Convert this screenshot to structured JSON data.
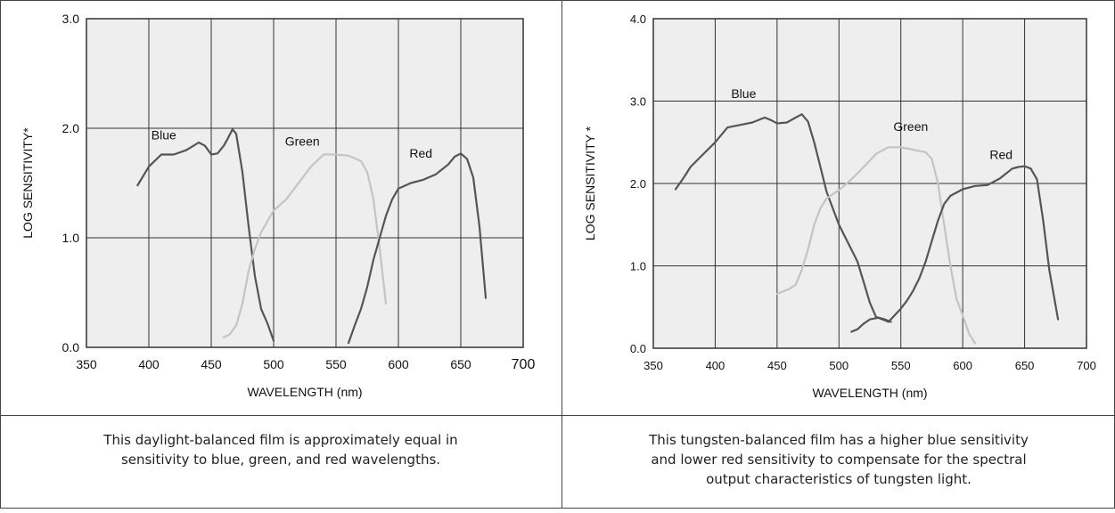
{
  "captions": [
    "This daylight-balanced film is approximately equal in sensitivity to blue, green, and red wavelengths.",
    "This tungsten-balanced film has a higher blue sensitivity and lower red sensitivity to compensate for the spectral output characteristics of tungsten light."
  ],
  "caption_lines": [
    [
      "This daylight-balanced film is approximately equal in",
      "sensitivity to blue, green, and red wavelengths."
    ],
    [
      "This tungsten-balanced film has a higher blue sensitivity",
      "and lower red sensitivity to compensate for the spectral",
      "output characteristics of tungsten light."
    ]
  ],
  "colors": {
    "blue_curve": "#555555",
    "green_curve": "#c4c4c4",
    "red_curve": "#555555",
    "plot_bg": "#eeeeee",
    "grid": "#333333"
  },
  "chart_data": [
    {
      "type": "line",
      "title": "",
      "xlabel": "WAVELENGTH (nm)",
      "ylabel": "LOG SENSITIVITY*",
      "xlim": [
        350,
        700
      ],
      "ylim": [
        0.0,
        3.0
      ],
      "xticks": [
        "350",
        "400",
        "450",
        "500",
        "550",
        "600",
        "650",
        "700"
      ],
      "yticks": [
        "0.0",
        "1.0",
        "2.0",
        "3.0"
      ],
      "grid": true,
      "series": [
        {
          "name": "Blue",
          "label_at": [
            412,
            1.9
          ],
          "color_key": "blue_curve",
          "points": [
            [
              391,
              1.48
            ],
            [
              400,
              1.65
            ],
            [
              410,
              1.76
            ],
            [
              420,
              1.76
            ],
            [
              430,
              1.8
            ],
            [
              440,
              1.87
            ],
            [
              445,
              1.84
            ],
            [
              450,
              1.76
            ],
            [
              455,
              1.77
            ],
            [
              460,
              1.84
            ],
            [
              463,
              1.9
            ],
            [
              467,
              1.99
            ],
            [
              470,
              1.95
            ],
            [
              475,
              1.6
            ],
            [
              480,
              1.1
            ],
            [
              485,
              0.65
            ],
            [
              490,
              0.35
            ],
            [
              495,
              0.22
            ],
            [
              500,
              0.06
            ]
          ]
        },
        {
          "name": "Green",
          "label_at": [
            523,
            1.84
          ],
          "color_key": "green_curve",
          "points": [
            [
              460,
              0.09
            ],
            [
              465,
              0.12
            ],
            [
              470,
              0.2
            ],
            [
              475,
              0.4
            ],
            [
              480,
              0.7
            ],
            [
              485,
              0.9
            ],
            [
              490,
              1.05
            ],
            [
              500,
              1.25
            ],
            [
              510,
              1.35
            ],
            [
              520,
              1.5
            ],
            [
              530,
              1.65
            ],
            [
              540,
              1.76
            ],
            [
              550,
              1.76
            ],
            [
              560,
              1.75
            ],
            [
              570,
              1.7
            ],
            [
              575,
              1.6
            ],
            [
              580,
              1.35
            ],
            [
              585,
              0.9
            ],
            [
              590,
              0.4
            ]
          ]
        },
        {
          "name": "Red",
          "label_at": [
            618,
            1.73
          ],
          "color_key": "red_curve",
          "points": [
            [
              560,
              0.04
            ],
            [
              565,
              0.2
            ],
            [
              570,
              0.35
            ],
            [
              575,
              0.55
            ],
            [
              580,
              0.8
            ],
            [
              585,
              1.0
            ],
            [
              590,
              1.2
            ],
            [
              595,
              1.35
            ],
            [
              600,
              1.45
            ],
            [
              610,
              1.5
            ],
            [
              620,
              1.53
            ],
            [
              630,
              1.58
            ],
            [
              640,
              1.67
            ],
            [
              645,
              1.74
            ],
            [
              650,
              1.77
            ],
            [
              655,
              1.72
            ],
            [
              660,
              1.55
            ],
            [
              665,
              1.1
            ],
            [
              670,
              0.45
            ]
          ]
        }
      ]
    },
    {
      "type": "line",
      "title": "",
      "xlabel": "WAVELENGTH (nm)",
      "ylabel": "LOG SENSITIVITY *",
      "xlim": [
        350,
        700
      ],
      "ylim": [
        0.0,
        4.0
      ],
      "xticks": [
        "350",
        "400",
        "450",
        "500",
        "550",
        "600",
        "650",
        "700"
      ],
      "yticks": [
        "0.0",
        "1.0",
        "2.0",
        "3.0",
        "4.0"
      ],
      "grid": true,
      "series": [
        {
          "name": "Blue",
          "label_at": [
            423,
            3.04
          ],
          "color_key": "blue_curve",
          "points": [
            [
              368,
              1.93
            ],
            [
              375,
              2.08
            ],
            [
              380,
              2.2
            ],
            [
              390,
              2.35
            ],
            [
              400,
              2.5
            ],
            [
              410,
              2.68
            ],
            [
              420,
              2.71
            ],
            [
              430,
              2.74
            ],
            [
              440,
              2.8
            ],
            [
              445,
              2.77
            ],
            [
              450,
              2.73
            ],
            [
              458,
              2.74
            ],
            [
              465,
              2.8
            ],
            [
              470,
              2.84
            ],
            [
              475,
              2.75
            ],
            [
              480,
              2.5
            ],
            [
              485,
              2.2
            ],
            [
              490,
              1.9
            ],
            [
              495,
              1.7
            ],
            [
              500,
              1.5
            ],
            [
              505,
              1.35
            ],
            [
              510,
              1.2
            ],
            [
              515,
              1.05
            ],
            [
              520,
              0.8
            ],
            [
              525,
              0.55
            ],
            [
              530,
              0.38
            ],
            [
              537,
              0.35
            ],
            [
              542,
              0.32
            ]
          ]
        },
        {
          "name": "Green",
          "label_at": [
            558,
            2.64
          ],
          "color_key": "green_curve",
          "points": [
            [
              450,
              0.66
            ],
            [
              460,
              0.72
            ],
            [
              465,
              0.77
            ],
            [
              470,
              0.95
            ],
            [
              475,
              1.2
            ],
            [
              480,
              1.5
            ],
            [
              485,
              1.7
            ],
            [
              490,
              1.82
            ],
            [
              500,
              1.92
            ],
            [
              510,
              2.05
            ],
            [
              520,
              2.2
            ],
            [
              530,
              2.36
            ],
            [
              540,
              2.44
            ],
            [
              550,
              2.44
            ],
            [
              560,
              2.41
            ],
            [
              570,
              2.38
            ],
            [
              575,
              2.3
            ],
            [
              580,
              2.0
            ],
            [
              585,
              1.5
            ],
            [
              590,
              1.0
            ],
            [
              595,
              0.6
            ],
            [
              600,
              0.4
            ],
            [
              605,
              0.18
            ],
            [
              610,
              0.06
            ]
          ]
        },
        {
          "name": "Red",
          "label_at": [
            631,
            2.3
          ],
          "color_key": "red_curve",
          "points": [
            [
              510,
              0.2
            ],
            [
              515,
              0.23
            ],
            [
              520,
              0.3
            ],
            [
              525,
              0.35
            ],
            [
              532,
              0.37
            ],
            [
              540,
              0.32
            ],
            [
              545,
              0.4
            ],
            [
              550,
              0.48
            ],
            [
              555,
              0.58
            ],
            [
              560,
              0.7
            ],
            [
              565,
              0.85
            ],
            [
              570,
              1.05
            ],
            [
              575,
              1.3
            ],
            [
              580,
              1.55
            ],
            [
              585,
              1.75
            ],
            [
              590,
              1.85
            ],
            [
              600,
              1.93
            ],
            [
              610,
              1.97
            ],
            [
              620,
              1.98
            ],
            [
              630,
              2.06
            ],
            [
              640,
              2.18
            ],
            [
              645,
              2.2
            ],
            [
              650,
              2.21
            ],
            [
              655,
              2.18
            ],
            [
              660,
              2.05
            ],
            [
              665,
              1.55
            ],
            [
              670,
              0.95
            ],
            [
              677,
              0.35
            ]
          ]
        }
      ]
    }
  ]
}
